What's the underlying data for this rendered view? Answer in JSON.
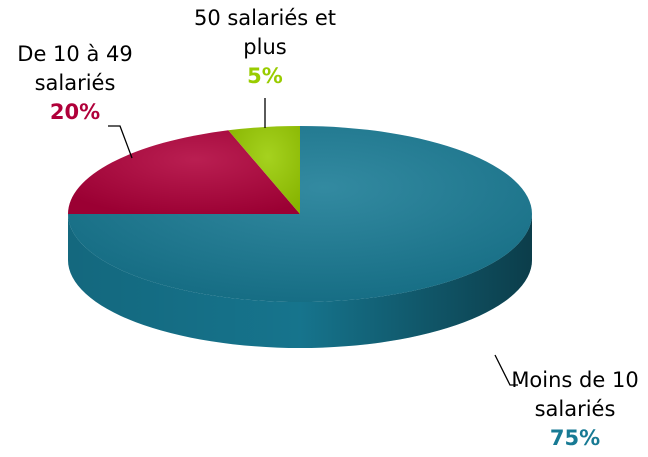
{
  "chart_data": {
    "type": "pie",
    "categories": [
      "Moins de 10 salariés",
      "De 10 à 49 salariés",
      "50 salariés et plus"
    ],
    "values": [
      75,
      20,
      5
    ],
    "value_labels": [
      "75%",
      "20%",
      "5%"
    ],
    "colors": [
      "#177a94",
      "#b0003a",
      "#99cc00"
    ]
  }
}
